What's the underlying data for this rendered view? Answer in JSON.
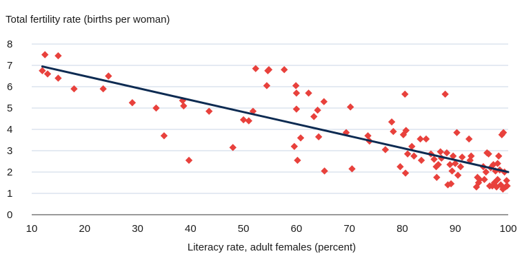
{
  "chart_data": {
    "type": "scatter",
    "title": "",
    "ylabel": "Total fertility rate (births per woman)",
    "xlabel": "Literacy rate, adult females (percent)",
    "xlim": [
      10,
      100
    ],
    "ylim": [
      0,
      8
    ],
    "xticks": [
      "10",
      "20",
      "30",
      "40",
      "50",
      "60",
      "70",
      "80",
      "90",
      "100"
    ],
    "yticks": [
      "0",
      "1",
      "2",
      "3",
      "4",
      "5",
      "6",
      "7",
      "8"
    ],
    "grid": "horizontal",
    "colors": {
      "points": "#e8413c",
      "trend": "#0d2b52",
      "grid": "#c8d4e6",
      "baseline": "#333333"
    },
    "trendline": {
      "x": [
        12,
        100
      ],
      "y": [
        6.95,
        2.0
      ]
    },
    "points": [
      {
        "x": 12,
        "y": 6.75
      },
      {
        "x": 12.5,
        "y": 7.5
      },
      {
        "x": 13,
        "y": 6.6
      },
      {
        "x": 15,
        "y": 7.45
      },
      {
        "x": 15,
        "y": 6.4
      },
      {
        "x": 18,
        "y": 5.9
      },
      {
        "x": 23.5,
        "y": 5.9
      },
      {
        "x": 24.5,
        "y": 6.5
      },
      {
        "x": 29,
        "y": 5.25
      },
      {
        "x": 33.5,
        "y": 5.0
      },
      {
        "x": 35,
        "y": 3.7
      },
      {
        "x": 38.5,
        "y": 5.35
      },
      {
        "x": 38.7,
        "y": 5.1
      },
      {
        "x": 39.7,
        "y": 2.55
      },
      {
        "x": 43.5,
        "y": 4.85
      },
      {
        "x": 48,
        "y": 3.15
      },
      {
        "x": 50,
        "y": 4.45
      },
      {
        "x": 51,
        "y": 4.4
      },
      {
        "x": 51.8,
        "y": 4.85
      },
      {
        "x": 52.3,
        "y": 6.85
      },
      {
        "x": 54.4,
        "y": 6.05
      },
      {
        "x": 54.6,
        "y": 6.75
      },
      {
        "x": 54.8,
        "y": 6.8
      },
      {
        "x": 57.7,
        "y": 6.8
      },
      {
        "x": 59.6,
        "y": 3.2
      },
      {
        "x": 59.9,
        "y": 6.05
      },
      {
        "x": 60,
        "y": 5.7
      },
      {
        "x": 60,
        "y": 4.95
      },
      {
        "x": 60.2,
        "y": 2.55
      },
      {
        "x": 60.8,
        "y": 3.6
      },
      {
        "x": 62.3,
        "y": 5.7
      },
      {
        "x": 63.3,
        "y": 4.6
      },
      {
        "x": 64,
        "y": 4.9
      },
      {
        "x": 64.2,
        "y": 3.65
      },
      {
        "x": 65.2,
        "y": 5.3
      },
      {
        "x": 65.3,
        "y": 2.05
      },
      {
        "x": 69.4,
        "y": 3.85
      },
      {
        "x": 70.2,
        "y": 5.05
      },
      {
        "x": 70.5,
        "y": 2.15
      },
      {
        "x": 73.5,
        "y": 3.7
      },
      {
        "x": 73.8,
        "y": 3.45
      },
      {
        "x": 76.8,
        "y": 3.05
      },
      {
        "x": 78,
        "y": 4.35
      },
      {
        "x": 78.3,
        "y": 3.9
      },
      {
        "x": 79.6,
        "y": 2.25
      },
      {
        "x": 80.2,
        "y": 3.75
      },
      {
        "x": 80.5,
        "y": 5.65
      },
      {
        "x": 80.7,
        "y": 3.95
      },
      {
        "x": 80.6,
        "y": 1.95
      },
      {
        "x": 81,
        "y": 2.85
      },
      {
        "x": 81.8,
        "y": 3.2
      },
      {
        "x": 82.2,
        "y": 2.75
      },
      {
        "x": 83.4,
        "y": 3.55
      },
      {
        "x": 83.6,
        "y": 2.55
      },
      {
        "x": 84.5,
        "y": 3.55
      },
      {
        "x": 85.4,
        "y": 2.85
      },
      {
        "x": 86,
        "y": 2.6
      },
      {
        "x": 86.4,
        "y": 2.25
      },
      {
        "x": 86.5,
        "y": 1.75
      },
      {
        "x": 86.8,
        "y": 2.35
      },
      {
        "x": 87.2,
        "y": 2.95
      },
      {
        "x": 87.4,
        "y": 2.65
      },
      {
        "x": 88.1,
        "y": 5.65
      },
      {
        "x": 88.4,
        "y": 2.9
      },
      {
        "x": 88.6,
        "y": 1.4
      },
      {
        "x": 89,
        "y": 2.35
      },
      {
        "x": 89.2,
        "y": 1.45
      },
      {
        "x": 89.4,
        "y": 2.05
      },
      {
        "x": 89.6,
        "y": 2.75
      },
      {
        "x": 90,
        "y": 2.4
      },
      {
        "x": 90.3,
        "y": 3.85
      },
      {
        "x": 90.5,
        "y": 1.85
      },
      {
        "x": 91,
        "y": 2.25
      },
      {
        "x": 91.3,
        "y": 2.7
      },
      {
        "x": 92.6,
        "y": 3.55
      },
      {
        "x": 92.8,
        "y": 2.55
      },
      {
        "x": 93,
        "y": 2.75
      },
      {
        "x": 94,
        "y": 1.3
      },
      {
        "x": 94.2,
        "y": 1.75
      },
      {
        "x": 94.4,
        "y": 1.5
      },
      {
        "x": 94.6,
        "y": 1.65
      },
      {
        "x": 95.3,
        "y": 2.25
      },
      {
        "x": 95.5,
        "y": 1.65
      },
      {
        "x": 95.8,
        "y": 2.0
      },
      {
        "x": 96,
        "y": 2.9
      },
      {
        "x": 96.3,
        "y": 2.85
      },
      {
        "x": 96.5,
        "y": 1.35
      },
      {
        "x": 96.7,
        "y": 2.2
      },
      {
        "x": 97,
        "y": 1.35
      },
      {
        "x": 97.2,
        "y": 2.35
      },
      {
        "x": 97.4,
        "y": 1.5
      },
      {
        "x": 97.6,
        "y": 2.05
      },
      {
        "x": 97.8,
        "y": 1.3
      },
      {
        "x": 98,
        "y": 1.65
      },
      {
        "x": 98,
        "y": 2.4
      },
      {
        "x": 98.2,
        "y": 2.75
      },
      {
        "x": 98.4,
        "y": 2.1
      },
      {
        "x": 98.6,
        "y": 1.4
      },
      {
        "x": 98.8,
        "y": 3.75
      },
      {
        "x": 99,
        "y": 1.2
      },
      {
        "x": 99.1,
        "y": 3.85
      },
      {
        "x": 99.3,
        "y": 2.0
      },
      {
        "x": 99.5,
        "y": 1.3
      },
      {
        "x": 99.7,
        "y": 1.6
      },
      {
        "x": 99.8,
        "y": 1.35
      }
    ]
  }
}
